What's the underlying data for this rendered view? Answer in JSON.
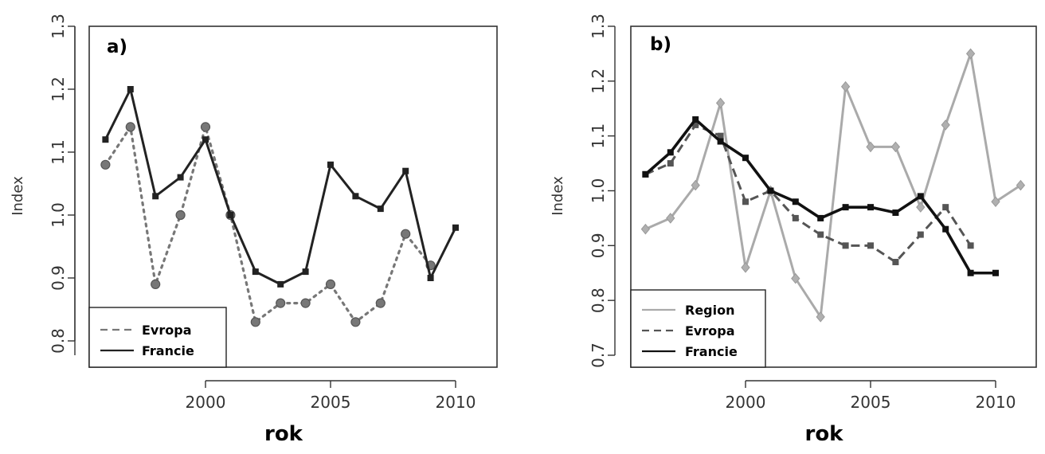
{
  "chart_data": [
    {
      "type": "line",
      "panel_label": "a)",
      "xlabel": "rok",
      "ylabel": "Index",
      "xlim": [
        1995.5,
        2011.5
      ],
      "ylim": [
        0.75,
        1.3
      ],
      "x_ticks": [
        2000,
        2005,
        2010
      ],
      "y_ticks": [
        0.8,
        0.9,
        1.0,
        1.1,
        1.2,
        1.3
      ],
      "x_tick_labels": [
        "2000",
        "2005",
        "2010"
      ],
      "y_tick_labels": [
        "0.8",
        "0.9",
        "1.0",
        "1.1",
        "1.2",
        "1.3"
      ],
      "legend": {
        "position": "bottom-left",
        "entries": [
          "Evropa",
          "Francie"
        ]
      },
      "series": [
        {
          "name": "Evropa",
          "style": "dotted",
          "marker": "circle",
          "color": "#777777",
          "x": [
            1996,
            1997,
            1998,
            1999,
            2000,
            2001,
            2002,
            2003,
            2004,
            2005,
            2006,
            2007,
            2008,
            2009
          ],
          "y": [
            1.08,
            1.14,
            0.89,
            1.0,
            1.14,
            1.0,
            0.83,
            0.86,
            0.86,
            0.89,
            0.83,
            0.86,
            0.97,
            0.92
          ]
        },
        {
          "name": "Francie",
          "style": "solid",
          "marker": "square",
          "color": "#222222",
          "x": [
            1996,
            1997,
            1998,
            1999,
            2000,
            2001,
            2002,
            2003,
            2004,
            2005,
            2006,
            2007,
            2008,
            2009,
            2010
          ],
          "y": [
            1.12,
            1.2,
            1.03,
            1.06,
            1.12,
            1.0,
            0.91,
            0.89,
            0.91,
            1.08,
            1.03,
            1.01,
            1.07,
            0.9,
            0.98
          ]
        }
      ]
    },
    {
      "type": "line",
      "panel_label": "b)",
      "xlabel": "rok",
      "ylabel": "Index",
      "xlim": [
        1995.5,
        2011.5
      ],
      "ylim": [
        0.68,
        1.3
      ],
      "x_ticks": [
        2000,
        2005,
        2010
      ],
      "y_ticks": [
        0.7,
        0.8,
        0.9,
        1.0,
        1.1,
        1.2,
        1.3
      ],
      "x_tick_labels": [
        "2000",
        "2005",
        "2010"
      ],
      "y_tick_labels": [
        "0.7",
        "0.8",
        "0.9",
        "1.0",
        "1.1",
        "1.2",
        "1.3"
      ],
      "legend": {
        "position": "bottom-left",
        "entries": [
          "Region",
          "Evropa",
          "Francie"
        ]
      },
      "series": [
        {
          "name": "Region",
          "style": "solid",
          "marker": "diamond",
          "color": "#aaaaaa",
          "x": [
            1996,
            1997,
            1998,
            1999,
            2000,
            2001,
            2002,
            2003,
            2004,
            2005,
            2006,
            2007,
            2008,
            2009,
            2010,
            2011
          ],
          "y": [
            0.93,
            0.95,
            1.01,
            1.16,
            0.86,
            1.0,
            0.84,
            0.77,
            1.19,
            1.08,
            1.08,
            0.97,
            1.12,
            1.25,
            0.98,
            1.01
          ]
        },
        {
          "name": "Evropa",
          "style": "dashed",
          "marker": "square",
          "color": "#555555",
          "x": [
            1996,
            1997,
            1998,
            1999,
            2000,
            2001,
            2002,
            2003,
            2004,
            2005,
            2006,
            2007,
            2008,
            2009
          ],
          "y": [
            1.03,
            1.05,
            1.12,
            1.1,
            0.98,
            1.0,
            0.95,
            0.92,
            0.9,
            0.9,
            0.87,
            0.92,
            0.97,
            0.9
          ]
        },
        {
          "name": "Francie",
          "style": "solid",
          "marker": "square",
          "color": "#111111",
          "x": [
            1996,
            1997,
            1998,
            1999,
            2000,
            2001,
            2002,
            2003,
            2004,
            2005,
            2006,
            2007,
            2008,
            2009,
            2010
          ],
          "y": [
            1.03,
            1.07,
            1.13,
            1.09,
            1.06,
            1.0,
            0.98,
            0.95,
            0.97,
            0.97,
            0.96,
            0.99,
            0.93,
            0.85,
            0.85
          ]
        }
      ]
    }
  ]
}
